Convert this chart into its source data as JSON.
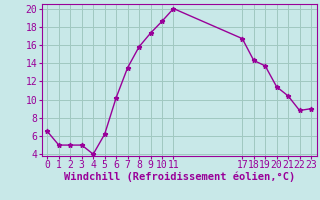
{
  "xlabel": "Windchill (Refroidissement éolien,°C)",
  "x": [
    0,
    1,
    2,
    3,
    4,
    5,
    6,
    7,
    8,
    9,
    10,
    11,
    17,
    18,
    19,
    20,
    21,
    22,
    23
  ],
  "y": [
    6.5,
    5.0,
    5.0,
    5.0,
    4.0,
    6.2,
    10.2,
    13.5,
    15.8,
    17.3,
    18.6,
    20.0,
    16.7,
    14.3,
    13.7,
    11.4,
    10.4,
    8.8,
    9.0
  ],
  "line_color": "#990099",
  "marker": "*",
  "bg_color": "#c8e8e8",
  "grid_color": "#a0c8c0",
  "ylim": [
    4,
    20
  ],
  "xlim": [
    -0.5,
    23.5
  ],
  "xticks": [
    0,
    1,
    2,
    3,
    4,
    5,
    6,
    7,
    8,
    9,
    10,
    11,
    17,
    18,
    19,
    20,
    21,
    22,
    23
  ],
  "yticks": [
    4,
    6,
    8,
    10,
    12,
    14,
    16,
    18,
    20
  ],
  "xlabel_fontsize": 7.5,
  "tick_fontsize": 7
}
